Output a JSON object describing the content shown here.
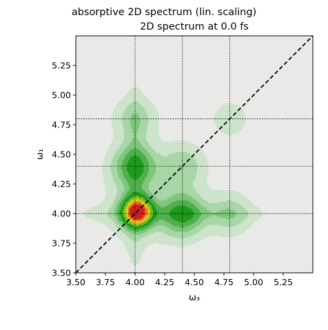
{
  "chart_data": {
    "type": "heatmap",
    "suptitle": "absorptive 2D spectrum (lin. scaling)",
    "title": "2D spectrum at 0.0 fs",
    "xlabel": "ω₃",
    "ylabel": "ω₁",
    "xlim": [
      3.5,
      5.5
    ],
    "ylim": [
      3.5,
      5.5
    ],
    "x_ticks": [
      "3.50",
      "3.75",
      "4.00",
      "4.25",
      "4.50",
      "4.75",
      "5.00",
      "5.25"
    ],
    "y_ticks": [
      "3.50",
      "3.75",
      "4.00",
      "4.25",
      "4.50",
      "4.75",
      "5.00",
      "5.25"
    ],
    "x_tick_values": [
      3.5,
      3.75,
      4.0,
      4.25,
      4.5,
      4.75,
      5.0,
      5.25
    ],
    "y_tick_values": [
      3.5,
      3.75,
      4.0,
      4.25,
      4.5,
      4.75,
      5.0,
      5.25
    ],
    "reference_lines_x": [
      4.0,
      4.4,
      4.8
    ],
    "reference_lines_y": [
      4.0,
      4.4,
      4.8
    ],
    "diagonal": true,
    "background_color": "#e9eae8",
    "colormap": [
      "#cde3cb",
      "#a9d6a6",
      "#7dc67c",
      "#4faf4c",
      "#1e9a1a",
      "#7fbf1f",
      "#e0c81c",
      "#e5761a",
      "#d21f1f"
    ],
    "peaks": [
      {
        "x": 4.02,
        "y": 4.02,
        "amplitude": 1.0
      },
      {
        "x": 4.0,
        "y": 4.4,
        "amplitude": 0.33
      },
      {
        "x": 4.4,
        "y": 4.0,
        "amplitude": 0.33
      },
      {
        "x": 4.0,
        "y": 4.8,
        "amplitude": 0.12
      },
      {
        "x": 4.8,
        "y": 4.0,
        "amplitude": 0.12
      },
      {
        "x": 4.4,
        "y": 4.4,
        "amplitude": 0.14
      },
      {
        "x": 4.8,
        "y": 4.8,
        "amplitude": 0.06
      }
    ]
  }
}
